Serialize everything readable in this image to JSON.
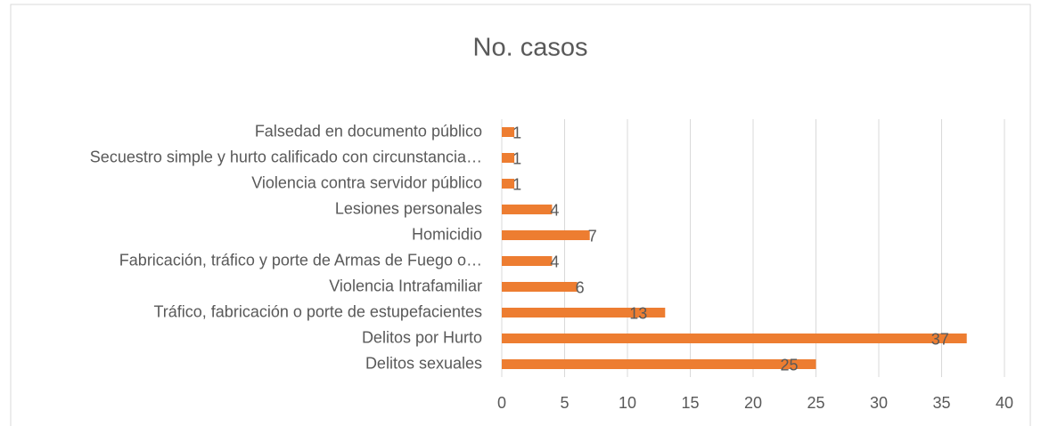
{
  "chart_data": {
    "type": "bar",
    "orientation": "horizontal",
    "title": "No. casos",
    "categories": [
      "Delitos sexuales",
      "Delitos por Hurto",
      "Tráfico, fabricación o porte de estupefacientes",
      "Violencia Intrafamiliar",
      "Fabricación, tráfico y porte de Armas de Fuego o…",
      "Homicidio",
      "Lesiones personales",
      "Violencia contra servidor público",
      "Secuestro simple y hurto calificado con circunstancia…",
      "Falsedad en documento público"
    ],
    "values": [
      25,
      37,
      13,
      6,
      4,
      7,
      4,
      1,
      1,
      1
    ],
    "color": "#ed7d31",
    "xlim": [
      0,
      40
    ],
    "xticks": [
      0,
      5,
      10,
      15,
      20,
      25,
      30,
      35,
      40
    ],
    "grid": true
  }
}
